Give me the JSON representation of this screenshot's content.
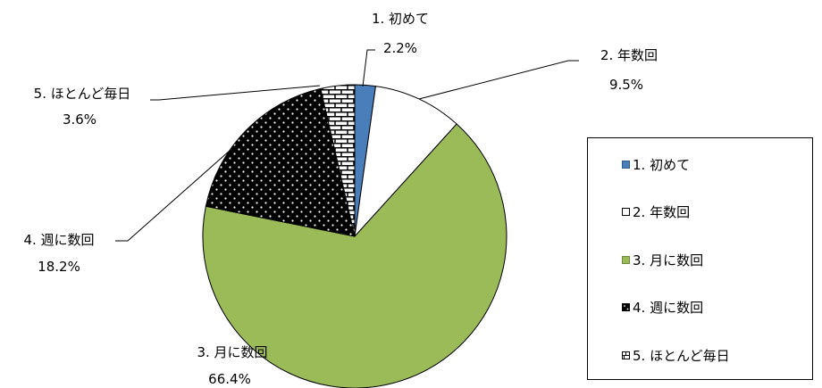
{
  "chart_data": {
    "type": "pie",
    "slices": [
      {
        "name": "1. 初めて",
        "value": 2.2,
        "value_label": "2.2%",
        "color": "#4a7ebb",
        "pattern": "solid"
      },
      {
        "name": "2. 年数回",
        "value": 9.5,
        "value_label": "9.5%",
        "color": "#ffffff",
        "pattern": "solid"
      },
      {
        "name": "3. 月に数回",
        "value": 66.4,
        "value_label": "66.4%",
        "color": "#9bbb59",
        "pattern": "solid"
      },
      {
        "name": "4. 週に数回",
        "value": 18.2,
        "value_label": "18.2%",
        "color": "#000000",
        "pattern": "dots"
      },
      {
        "name": "5. ほとんど毎日",
        "value": 3.6,
        "value_label": "3.6%",
        "color": "#000000",
        "pattern": "bricks"
      }
    ],
    "legend": {
      "position": "right",
      "entries": [
        "1. 初めて",
        "2. 年数回",
        "3. 月に数回",
        "4. 週に数回",
        "5. ほとんど毎日"
      ]
    },
    "start_angle": "12 o'clock",
    "direction": "clockwise"
  }
}
